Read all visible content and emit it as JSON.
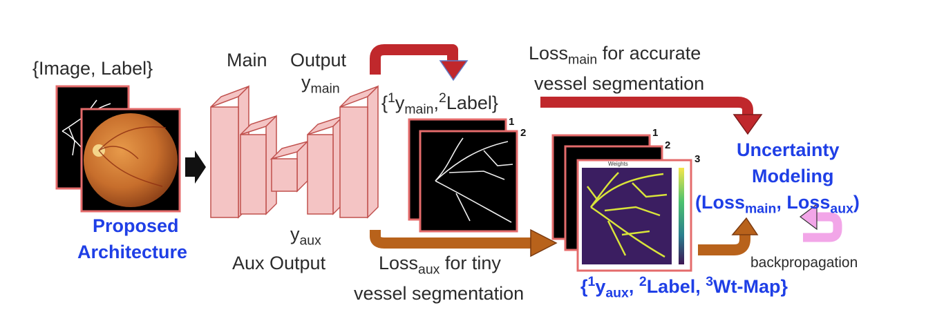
{
  "input_set_label": "{Image, Label}",
  "proposed": {
    "line1": "Proposed",
    "line2": "Architecture"
  },
  "main_output": {
    "main": "Main",
    "output": "Output",
    "y_base": "y",
    "y_sub": "main"
  },
  "aux_output": {
    "y_base": "y",
    "y_sub": "aux",
    "label": "Aux Output"
  },
  "main_pair": {
    "open": "{",
    "sup1": "1",
    "y_base": "y",
    "y_sub": "main",
    "comma": ",",
    "sup2": "2",
    "label": "Label}"
  },
  "aux_set": {
    "open": "{",
    "sup1": "1",
    "y_base": "y",
    "y_sub": "aux",
    "comma": ", ",
    "sup2": "2",
    "label": "Label, ",
    "sup3": "3",
    "wt": "Wt-Map}"
  },
  "loss_main_note": {
    "loss": "Loss",
    "sub": "main",
    "rest": " for accurate",
    "line2": "vessel segmentation"
  },
  "loss_aux_note": {
    "loss": "Loss",
    "sub": "aux",
    "rest": " for tiny",
    "line2": "vessel segmentation"
  },
  "uncertainty": {
    "line1": "Uncertainty",
    "line2": "Modeling",
    "open": "(Loss",
    "sub1": "main",
    "mid": ", Loss",
    "sub2": "aux",
    "close": ")"
  },
  "backprop_label": "backpropagation",
  "stack_numbers": {
    "one": "1",
    "two": "2",
    "three": "3"
  },
  "weights_title": "Weights",
  "colors": {
    "block_fill": "#f4c4c4",
    "block_stroke": "#c0504d",
    "red_arrow": "#c0282c",
    "orange_arrow": "#b8621b",
    "pink_arrow": "#f2a6e8",
    "text_blue": "#1f3fe6",
    "wt_map_bg": "#3b1e61",
    "vessel_yellow": "#d9e43a"
  }
}
